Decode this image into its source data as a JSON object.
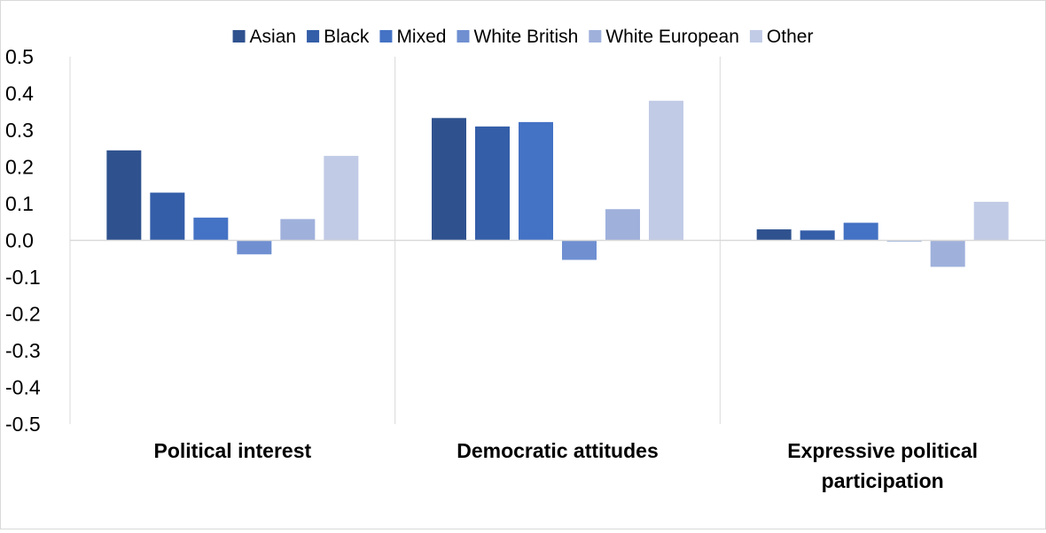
{
  "chart_data": {
    "type": "bar",
    "title": "",
    "xlabel": "",
    "ylabel": "",
    "categories": [
      "Political interest",
      "Democratic attitudes",
      "Expressive political participation"
    ],
    "category_lines": [
      [
        "Political interest"
      ],
      [
        "Democratic attitudes"
      ],
      [
        "Expressive political",
        "participation"
      ]
    ],
    "ylim": [
      -0.5,
      0.5
    ],
    "yticks": [
      0.5,
      0.4,
      0.3,
      0.2,
      0.1,
      0.0,
      -0.1,
      -0.2,
      -0.3,
      -0.4,
      -0.5
    ],
    "ytick_labels": [
      "0.5",
      "0.4",
      "0.3",
      "0.2",
      "0.1",
      "0.0",
      "-0.1",
      "-0.2",
      "-0.3",
      "-0.4",
      "-0.5"
    ],
    "grid": false,
    "legend_position": "top",
    "series": [
      {
        "name": "Asian",
        "color": "#2f528f",
        "values": [
          0.245,
          0.333,
          0.03
        ]
      },
      {
        "name": "Black",
        "color": "#345ea8",
        "values": [
          0.13,
          0.31,
          0.027
        ]
      },
      {
        "name": "Mixed",
        "color": "#4472c4",
        "values": [
          0.062,
          0.322,
          0.048
        ]
      },
      {
        "name": "White British",
        "color": "#6f8fd1",
        "values": [
          -0.038,
          -0.053,
          -0.003
        ]
      },
      {
        "name": "White European",
        "color": "#9fb0db",
        "values": [
          0.058,
          0.085,
          -0.072
        ]
      },
      {
        "name": "Other",
        "color": "#c1cbe6",
        "values": [
          0.23,
          0.38,
          0.105
        ]
      }
    ]
  }
}
